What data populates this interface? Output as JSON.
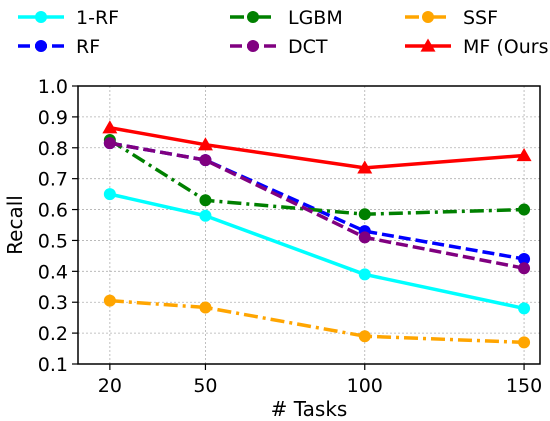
{
  "chart_data": {
    "type": "line",
    "title": "",
    "xlabel": "# Tasks",
    "ylabel": "Recall",
    "categories": [
      "20",
      "50",
      "100",
      "150"
    ],
    "x": [
      20,
      50,
      100,
      150
    ],
    "ylim": [
      0.1,
      1.0
    ],
    "yticks": [
      "0.1",
      "0.2",
      "0.3",
      "0.4",
      "0.5",
      "0.6",
      "0.7",
      "0.8",
      "0.9",
      "1.0"
    ],
    "grid": true,
    "legend_position": "top, outside plot, 3 columns",
    "series": [
      {
        "name": "1-RF",
        "color": "#00FFFF",
        "style": "solid",
        "marker": "circle",
        "values": [
          0.65,
          0.58,
          0.39,
          0.28
        ]
      },
      {
        "name": "RF",
        "color": "#0000FF",
        "style": "dashed",
        "marker": "circle",
        "values": [
          0.815,
          0.76,
          0.53,
          0.44
        ]
      },
      {
        "name": "LGBM",
        "color": "#008000",
        "style": "dashdot",
        "marker": "circle",
        "values": [
          0.825,
          0.63,
          0.585,
          0.6
        ]
      },
      {
        "name": "DCT",
        "color": "#800080",
        "style": "dashed",
        "marker": "circle",
        "values": [
          0.815,
          0.76,
          0.51,
          0.41
        ]
      },
      {
        "name": "SSF",
        "color": "#FFA500",
        "style": "dashdot",
        "marker": "circle",
        "values": [
          0.305,
          0.283,
          0.19,
          0.17
        ]
      },
      {
        "name": "MF (Ours)",
        "color": "#FF0000",
        "style": "solid",
        "marker": "triangle",
        "values": [
          0.865,
          0.81,
          0.735,
          0.775
        ]
      }
    ]
  }
}
